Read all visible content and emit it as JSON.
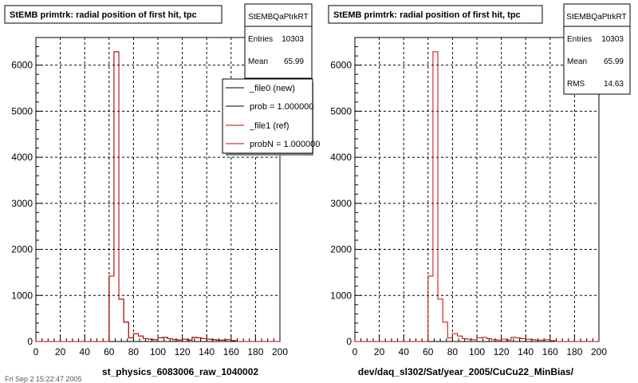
{
  "colors": {
    "background": "#ffffff",
    "axis": "#000000",
    "grid": "#000000",
    "new_series": "#000000",
    "ref_series": "#cc0000",
    "frame": "#000000"
  },
  "footer_text": "Fri Sep 2 15:22:47 2005",
  "panels": [
    {
      "title": "StEMB primtrk: radial position of first hit, tpc",
      "stats": {
        "name": "StEMBQaPtrkRT",
        "rows": [
          {
            "label": "Entries",
            "value": "10303"
          },
          {
            "label": "Mean",
            "value": "65.99"
          }
        ]
      },
      "legend": {
        "entries": [
          {
            "label": "_file0 (new)",
            "color": "#000000"
          },
          {
            "label": "prob = 1.000000",
            "color": "#000000"
          },
          {
            "label": "_file1 (ref)",
            "color": "#cc0000"
          },
          {
            "label": "probN = 1.000000",
            "color": "#cc0000"
          }
        ]
      }
    },
    {
      "title": "StEMB primtrk: radial position of first hit, tpc",
      "stats": {
        "name": "StEMBQaPtrkRT",
        "rows": [
          {
            "label": "Entries",
            "value": "10303"
          },
          {
            "label": "Mean",
            "value": "65.99"
          },
          {
            "label": "RMS",
            "value": "14.63"
          }
        ]
      },
      "legend": null
    }
  ],
  "chart_data": [
    {
      "type": "line",
      "style": "step-histogram",
      "title": "StEMB primtrk: radial position of first hit, tpc",
      "xlabel": "st_physics_6083006_raw_1040002",
      "ylabel": "",
      "xlim": [
        0,
        200
      ],
      "ylim": [
        0,
        6600
      ],
      "xticks": [
        0,
        20,
        40,
        60,
        80,
        100,
        120,
        140,
        160,
        180,
        200
      ],
      "yticks": [
        0,
        1000,
        2000,
        3000,
        4000,
        5000,
        6000
      ],
      "grid": true,
      "legend_position": "top-right",
      "bin_width": 4,
      "x": [
        0,
        4,
        8,
        12,
        16,
        20,
        24,
        28,
        32,
        36,
        40,
        44,
        48,
        52,
        56,
        60,
        64,
        68,
        72,
        76,
        80,
        84,
        88,
        92,
        96,
        100,
        104,
        108,
        112,
        116,
        120,
        124,
        128,
        132,
        136,
        140,
        144,
        148,
        152,
        156,
        160,
        164,
        168,
        172,
        176,
        180,
        184,
        188,
        192,
        196
      ],
      "series": [
        {
          "name": "_file0 (new)",
          "values": [
            0,
            0,
            0,
            0,
            0,
            0,
            0,
            0,
            0,
            0,
            0,
            0,
            0,
            0,
            0,
            1420,
            6290,
            920,
            420,
            80,
            170,
            120,
            60,
            50,
            40,
            80,
            90,
            60,
            40,
            30,
            50,
            30,
            90,
            80,
            60,
            50,
            40,
            30,
            30,
            40,
            20,
            0,
            0,
            0,
            0,
            0,
            0,
            0,
            0,
            0
          ]
        },
        {
          "name": "_file1 (ref)",
          "values": [
            0,
            0,
            0,
            0,
            0,
            0,
            0,
            0,
            0,
            0,
            0,
            0,
            0,
            0,
            0,
            1420,
            6290,
            920,
            420,
            80,
            170,
            120,
            60,
            50,
            40,
            80,
            90,
            60,
            40,
            30,
            50,
            30,
            90,
            80,
            60,
            50,
            40,
            30,
            30,
            40,
            20,
            0,
            0,
            0,
            0,
            0,
            0,
            0,
            0,
            0
          ]
        }
      ]
    },
    {
      "type": "line",
      "style": "step-histogram",
      "title": "StEMB primtrk: radial position of first hit, tpc",
      "xlabel": "dev/daq_sl302/Sat/year_2005/CuCu22_MinBias/",
      "ylabel": "",
      "xlim": [
        0,
        200
      ],
      "ylim": [
        0,
        6600
      ],
      "xticks": [
        0,
        20,
        40,
        60,
        80,
        100,
        120,
        140,
        160,
        180,
        200
      ],
      "yticks": [
        0,
        1000,
        2000,
        3000,
        4000,
        5000,
        6000
      ],
      "grid": true,
      "bin_width": 4,
      "x": [
        0,
        4,
        8,
        12,
        16,
        20,
        24,
        28,
        32,
        36,
        40,
        44,
        48,
        52,
        56,
        60,
        64,
        68,
        72,
        76,
        80,
        84,
        88,
        92,
        96,
        100,
        104,
        108,
        112,
        116,
        120,
        124,
        128,
        132,
        136,
        140,
        144,
        148,
        152,
        156,
        160,
        164,
        168,
        172,
        176,
        180,
        184,
        188,
        192,
        196
      ],
      "series": [
        {
          "name": "",
          "values": [
            0,
            0,
            0,
            0,
            0,
            0,
            0,
            0,
            0,
            0,
            0,
            0,
            0,
            0,
            0,
            1420,
            6290,
            920,
            420,
            80,
            170,
            120,
            60,
            50,
            40,
            80,
            90,
            60,
            40,
            30,
            50,
            30,
            90,
            80,
            60,
            50,
            40,
            30,
            30,
            40,
            20,
            0,
            0,
            0,
            0,
            0,
            0,
            0,
            0,
            0
          ]
        }
      ]
    }
  ]
}
